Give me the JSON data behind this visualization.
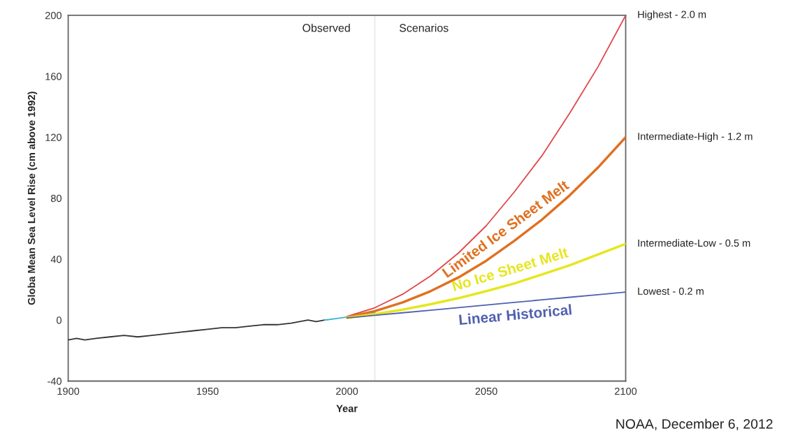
{
  "chart_data": {
    "type": "line",
    "xlabel": "Year",
    "ylabel": "Globa Mean Sea Level Rise (cm above 1992)",
    "xlim": [
      1900,
      2100
    ],
    "xticks": [
      1900,
      1950,
      2000,
      2050,
      2100
    ],
    "ylim": [
      -40,
      200
    ],
    "yticks": [
      -40,
      0,
      40,
      80,
      120,
      160,
      200
    ],
    "grid": false,
    "legend": false,
    "marker": "none",
    "line_style": "solid",
    "series": [
      {
        "color": "#333333",
        "x": [
          1900,
          1903,
          1906,
          1910,
          1915,
          1920,
          1925,
          1930,
          1935,
          1940,
          1945,
          1950,
          1955,
          1960,
          1965,
          1970,
          1975,
          1980,
          1983,
          1986,
          1989,
          1992
        ],
        "values": [
          -13,
          -12,
          -13,
          -12,
          -11,
          -10,
          -11,
          -10,
          -9,
          -8,
          -7,
          -6,
          -5,
          -5,
          -4,
          -3,
          -3,
          -2,
          -1,
          0,
          -1,
          0
        ]
      },
      {
        "color": "#3fb0d0",
        "x": [
          1992,
          1996,
          2000,
          2004,
          2008,
          2010
        ],
        "values": [
          0,
          1,
          2,
          3,
          4,
          5
        ]
      },
      {
        "name": "Highest - 2.0 m",
        "color": "#e0474c",
        "x": [
          2000,
          2010,
          2020,
          2030,
          2040,
          2050,
          2060,
          2070,
          2080,
          2090,
          2100
        ],
        "values": [
          2.4,
          8.1,
          17,
          29,
          44,
          62,
          84,
          108,
          136,
          166,
          200
        ]
      },
      {
        "name": "Intermediate-High - 1.2 m",
        "color": "#e07020",
        "x": [
          2000,
          2010,
          2020,
          2030,
          2040,
          2050,
          2060,
          2070,
          2080,
          2090,
          2100
        ],
        "values": [
          1.9,
          5.9,
          11.6,
          19,
          28,
          39,
          52,
          66,
          82,
          100,
          120
        ]
      },
      {
        "name": "Intermediate-Low - 0.5 m",
        "color": "#e6e620",
        "x": [
          2000,
          2010,
          2020,
          2030,
          2040,
          2050,
          2060,
          2070,
          2080,
          2090,
          2100
        ],
        "values": [
          1.5,
          3.9,
          6.9,
          10.4,
          14.4,
          19,
          24,
          30,
          36,
          43,
          50
        ]
      },
      {
        "name": "Lowest - 0.2 m",
        "color": "#5060b0",
        "x": [
          2000,
          2010,
          2020,
          2030,
          2040,
          2050,
          2060,
          2070,
          2080,
          2090,
          2100
        ],
        "values": [
          1.4,
          3.1,
          4.8,
          6.5,
          8.2,
          9.9,
          11.6,
          13.3,
          15,
          16.7,
          18.4
        ]
      }
    ],
    "ref_lines": [
      {
        "axis": "x",
        "value": 2010,
        "color": "#e8e8e8"
      }
    ],
    "annotations": [
      "Observed",
      "Scenarios",
      "NOAA, December 6, 2012",
      "Limited Ice Sheet Melt",
      "No Ice Sheet Melt",
      "Linear Historical"
    ]
  }
}
